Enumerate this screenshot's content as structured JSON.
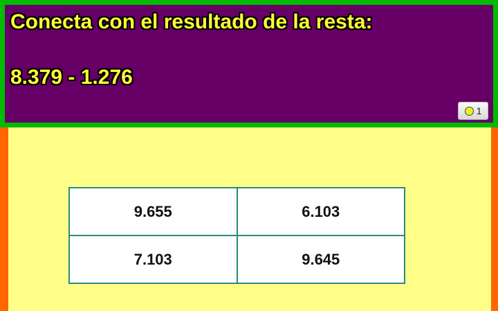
{
  "question": {
    "prompt": "Conecta con el resultado de la resta:",
    "expression": "8.379 - 1.276"
  },
  "attempts_badge": {
    "icon": "yellow-circle-icon",
    "count": "1"
  },
  "options": [
    "9.655",
    "6.103",
    "7.103",
    "9.645"
  ],
  "colors": {
    "header_bg": "#660066",
    "header_border": "#00bb00",
    "text": "#ffff33",
    "area_bg": "#ffff88",
    "side": "#ff6600",
    "grid": "#2a8a7a"
  }
}
